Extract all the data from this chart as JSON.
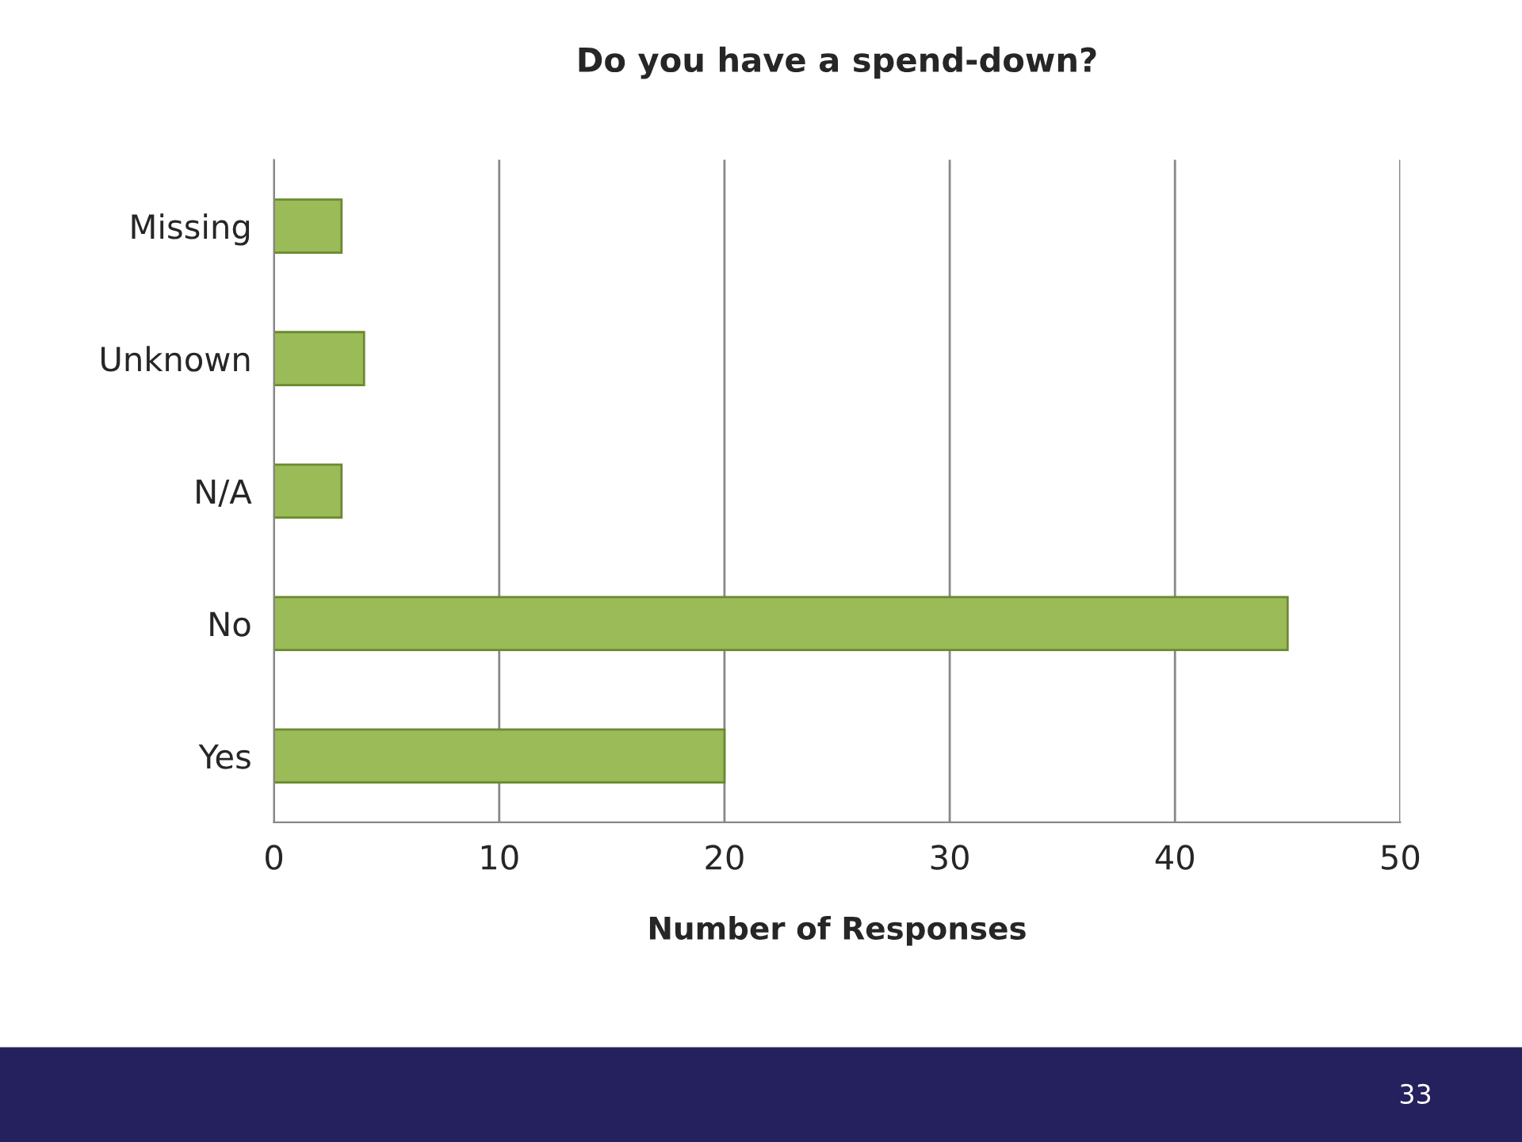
{
  "chart_data": {
    "type": "bar",
    "orientation": "horizontal",
    "title": "Do you have a spend-down?",
    "xlabel": "Number of Responses",
    "categories": [
      "Missing",
      "Unknown",
      "N/A",
      "No",
      "Yes"
    ],
    "values": [
      3,
      4,
      3,
      45,
      20
    ],
    "color": "#9bbb59",
    "xlim": [
      0,
      50
    ],
    "xticks": [
      0,
      10,
      20,
      30,
      40,
      50
    ],
    "grid": "x",
    "legend": false,
    "annotations": [
      "33"
    ]
  }
}
